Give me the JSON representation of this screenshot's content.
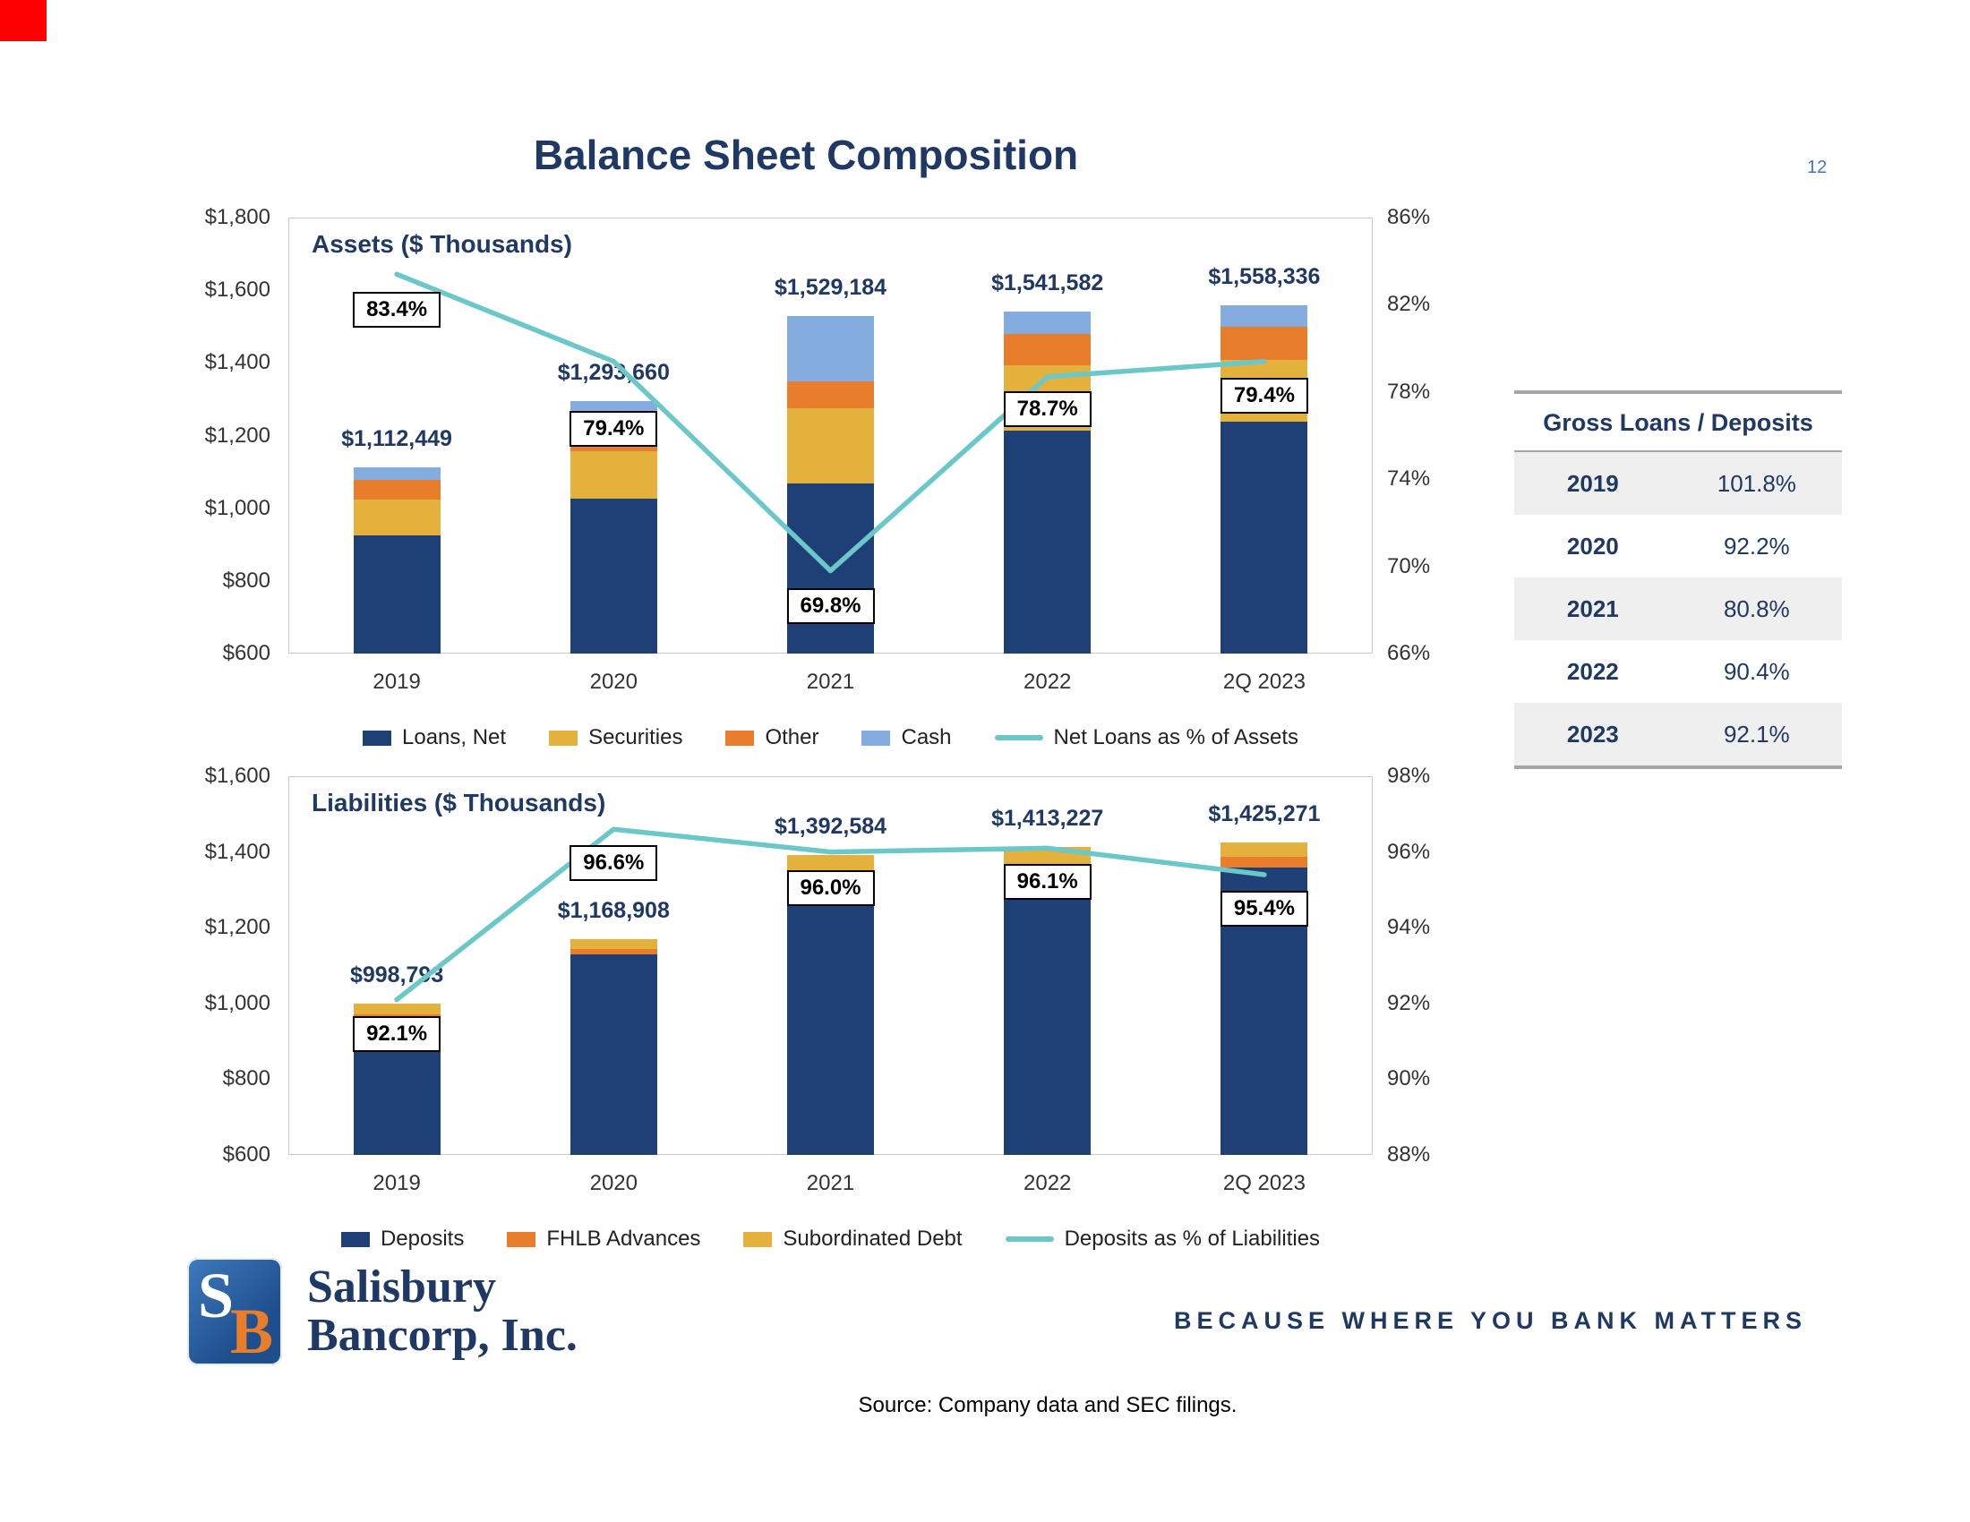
{
  "page": {
    "title": "Balance Sheet Composition",
    "page_number": "12",
    "tagline": "BECAUSE WHERE YOU BANK MATTERS",
    "source": "Source: Company data and SEC filings.",
    "logo": {
      "line1": "Salisbury",
      "line2": "Bancorp, Inc.",
      "icon_s": "S",
      "icon_b": "B"
    }
  },
  "colors": {
    "navy": "#1F3864",
    "dark_blue": "#1E4077",
    "gold": "#E3B13C",
    "orange": "#E87D2C",
    "light_blue": "#85ACDF",
    "teal": "#6CC7C9"
  },
  "chart_data": [
    {
      "type": "stacked-bar-line",
      "title": "Assets ($ Thousands)",
      "categories": [
        "2019",
        "2020",
        "2021",
        "2022",
        "2Q 2023"
      ],
      "series": [
        {
          "key": "loans-net",
          "name": "Loans, Net",
          "color": "dark_blue",
          "values": [
            925,
            1027,
            1067,
            1213,
            1237
          ]
        },
        {
          "key": "securities",
          "name": "Securities",
          "color": "gold",
          "values": [
            100,
            130,
            208,
            180,
            172
          ]
        },
        {
          "key": "other",
          "name": "Other",
          "color": "orange",
          "values": [
            52,
            80,
            74,
            87,
            91
          ]
        },
        {
          "key": "cash",
          "name": "Cash",
          "color": "light_blue",
          "values": [
            35,
            57,
            180,
            62,
            58
          ]
        }
      ],
      "totals_labels": [
        "$1,112,449",
        "$1,293,660",
        "$1,529,184",
        "$1,541,582",
        "$1,558,336"
      ],
      "line": {
        "name": "Net Loans as % of Assets",
        "values": [
          83.4,
          79.4,
          69.8,
          78.7,
          79.4
        ],
        "labels": [
          "83.4%",
          "79.4%",
          "69.8%",
          "78.7%",
          "79.4%"
        ]
      },
      "left_axis": {
        "min": 600,
        "max": 1800,
        "step": 200,
        "labels": [
          "$1,800",
          "$1,600",
          "$1,400",
          "$1,200",
          "$1,000",
          "$800",
          "$600"
        ]
      },
      "right_axis": {
        "min": 66,
        "max": 86,
        "step": 4,
        "labels": [
          "86%",
          "82%",
          "78%",
          "74%",
          "70%",
          "66%"
        ]
      }
    },
    {
      "type": "stacked-bar-line",
      "title": "Liabilities ($ Thousands)",
      "categories": [
        "2019",
        "2020",
        "2021",
        "2022",
        "2Q 2023"
      ],
      "series": [
        {
          "key": "deposits",
          "name": "Deposits",
          "color": "dark_blue",
          "values": [
            920,
            1129,
            1337,
            1358,
            1360
          ]
        },
        {
          "key": "fhlb-advances",
          "name": "FHLB Advances",
          "color": "orange",
          "values": [
            50,
            15,
            8,
            8,
            28
          ]
        },
        {
          "key": "subordinated-debt",
          "name": "Subordinated Debt",
          "color": "gold",
          "values": [
            29,
            25,
            48,
            47,
            37
          ]
        }
      ],
      "totals_labels": [
        "$998,793",
        "$1,168,908",
        "$1,392,584",
        "$1,413,227",
        "$1,425,271"
      ],
      "line": {
        "name": "Deposits as % of Liabilities",
        "values": [
          92.1,
          96.6,
          96.0,
          96.1,
          95.4
        ],
        "labels": [
          "92.1%",
          "96.6%",
          "96.0%",
          "96.1%",
          "95.4%"
        ]
      },
      "left_axis": {
        "min": 600,
        "max": 1600,
        "step": 200,
        "labels": [
          "$1,600",
          "$1,400",
          "$1,200",
          "$1,000",
          "$800",
          "$600"
        ]
      },
      "right_axis": {
        "min": 88,
        "max": 98,
        "step": 2,
        "labels": [
          "98%",
          "96%",
          "94%",
          "92%",
          "90%",
          "88%"
        ]
      }
    }
  ],
  "table": {
    "title": "Gross Loans / Deposits",
    "rows": [
      {
        "year": "2019",
        "value": "101.8%"
      },
      {
        "year": "2020",
        "value": "92.2%"
      },
      {
        "year": "2021",
        "value": "80.8%"
      },
      {
        "year": "2022",
        "value": "90.4%"
      },
      {
        "year": "2023",
        "value": "92.1%"
      }
    ]
  }
}
